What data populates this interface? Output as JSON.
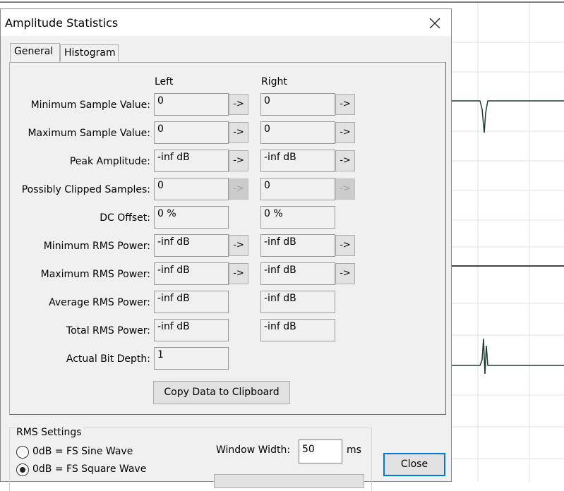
{
  "dialog": {
    "title": "Amplitude Statistics",
    "tabs": [
      {
        "label": "General",
        "selected": true
      },
      {
        "label": "Histogram",
        "selected": false
      }
    ],
    "columns": [
      "Left",
      "Right"
    ],
    "arrow_button": "->",
    "rows": [
      {
        "label": "Minimum Sample Value:",
        "left": "0",
        "right": "0",
        "arrows": "enabled"
      },
      {
        "label": "Maximum Sample Value:",
        "left": "0",
        "right": "0",
        "arrows": "enabled"
      },
      {
        "label": "Peak Amplitude:",
        "left": "-inf dB",
        "right": "-inf dB",
        "arrows": "enabled"
      },
      {
        "label": "Possibly Clipped Samples:",
        "left": "0",
        "right": "0",
        "arrows": "disabled"
      },
      {
        "label": "DC Offset:",
        "left": "0 %",
        "right": "0 %"
      },
      {
        "label": "Minimum RMS Power:",
        "left": "-inf dB",
        "right": "-inf dB",
        "arrows": "enabled"
      },
      {
        "label": "Maximum RMS Power:",
        "left": "-inf dB",
        "right": "-inf dB",
        "arrows": "enabled"
      },
      {
        "label": "Average RMS Power:",
        "left": "-inf dB",
        "right": "-inf dB"
      },
      {
        "label": "Total RMS Power:",
        "left": "-inf dB",
        "right": "-inf dB"
      },
      {
        "label": "Actual Bit Depth:",
        "left": "1"
      }
    ],
    "copy_button": "Copy Data to Clipboard",
    "rms_settings": {
      "title": "RMS Settings",
      "options": [
        {
          "label": "0dB = FS Sine Wave",
          "checked": false
        },
        {
          "label": "0dB = FS Square Wave",
          "checked": true
        }
      ],
      "window_width_label": "Window Width:",
      "window_width": "50",
      "unit": "ms"
    },
    "close_button": "Close"
  }
}
